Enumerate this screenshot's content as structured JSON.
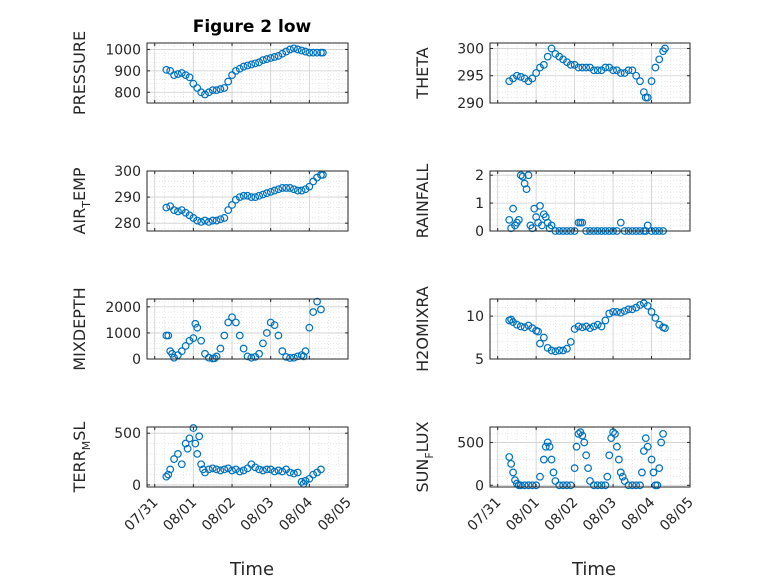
{
  "figure": {
    "title": "Figure 2 low",
    "xlabel": "Time",
    "marker_color": "#0072BD",
    "grid": "on",
    "x_tick_labels": [
      "07/31",
      "08/01",
      "08/02",
      "08/03",
      "08/04",
      "08/05"
    ]
  },
  "chart_data": [
    {
      "type": "scatter",
      "ylabel_main": "PRESSURE",
      "ylabel_sub": "",
      "ylabel_rest": "",
      "ylim": [
        750,
        1030
      ],
      "yticks": [
        800,
        900,
        1000
      ],
      "xlim": [
        -0.2,
        5.0
      ],
      "xticks": [
        0,
        1,
        2,
        3,
        4,
        5
      ],
      "x": [
        0.3,
        0.4,
        0.5,
        0.6,
        0.7,
        0.8,
        0.9,
        1.0,
        1.1,
        1.2,
        1.3,
        1.4,
        1.5,
        1.6,
        1.7,
        1.8,
        1.9,
        2.0,
        2.1,
        2.2,
        2.3,
        2.4,
        2.5,
        2.6,
        2.7,
        2.8,
        2.9,
        3.0,
        3.1,
        3.2,
        3.3,
        3.4,
        3.5,
        3.6,
        3.7,
        3.8,
        3.9,
        4.0,
        4.1,
        4.2,
        4.3,
        4.35
      ],
      "y": [
        905,
        900,
        880,
        885,
        890,
        880,
        870,
        840,
        820,
        800,
        790,
        800,
        810,
        810,
        815,
        820,
        850,
        880,
        900,
        910,
        920,
        925,
        930,
        935,
        940,
        950,
        955,
        960,
        965,
        970,
        980,
        990,
        1000,
        1005,
        1000,
        995,
        990,
        985,
        985,
        985,
        985,
        985
      ]
    },
    {
      "type": "scatter",
      "ylabel_main": "THETA",
      "ylabel_sub": "",
      "ylabel_rest": "",
      "ylim": [
        290,
        301
      ],
      "yticks": [
        290,
        295,
        300
      ],
      "xlim": [
        -0.2,
        5.0
      ],
      "xticks": [
        0,
        1,
        2,
        3,
        4,
        5
      ],
      "x": [
        0.3,
        0.4,
        0.5,
        0.6,
        0.7,
        0.8,
        0.9,
        1.0,
        1.1,
        1.2,
        1.3,
        1.4,
        1.5,
        1.6,
        1.7,
        1.8,
        1.9,
        2.0,
        2.1,
        2.2,
        2.3,
        2.4,
        2.5,
        2.6,
        2.7,
        2.8,
        2.9,
        3.0,
        3.1,
        3.2,
        3.3,
        3.4,
        3.5,
        3.6,
        3.7,
        3.8,
        3.85,
        3.9,
        4.0,
        4.1,
        4.2,
        4.3,
        4.35
      ],
      "y": [
        294,
        294.5,
        295,
        294.8,
        294.5,
        294,
        294.5,
        295.5,
        296.5,
        297,
        298.5,
        300,
        299,
        298.5,
        298,
        297.5,
        297,
        297,
        296.5,
        296.5,
        296.5,
        296.5,
        296,
        296,
        296,
        296.5,
        296.5,
        296,
        296,
        295.5,
        295.5,
        296,
        296,
        295,
        294,
        292,
        291,
        291,
        294,
        296.5,
        298,
        299.5,
        300
      ]
    },
    {
      "type": "scatter",
      "ylabel_main": "AIR",
      "ylabel_sub": "T",
      "ylabel_rest": "EMP",
      "ylim": [
        277,
        300
      ],
      "yticks": [
        280,
        290,
        300
      ],
      "xlim": [
        -0.2,
        5.0
      ],
      "xticks": [
        0,
        1,
        2,
        3,
        4,
        5
      ],
      "x": [
        0.3,
        0.4,
        0.5,
        0.6,
        0.7,
        0.8,
        0.9,
        1.0,
        1.1,
        1.2,
        1.3,
        1.4,
        1.5,
        1.6,
        1.7,
        1.8,
        1.9,
        2.0,
        2.1,
        2.2,
        2.3,
        2.4,
        2.5,
        2.6,
        2.7,
        2.8,
        2.9,
        3.0,
        3.1,
        3.2,
        3.3,
        3.4,
        3.5,
        3.6,
        3.7,
        3.8,
        3.9,
        4.0,
        4.1,
        4.2,
        4.3,
        4.35
      ],
      "y": [
        286,
        286.5,
        285,
        284.5,
        285,
        284,
        283,
        282,
        281,
        280.5,
        281,
        280.5,
        281,
        281,
        281.5,
        282,
        285,
        287,
        289,
        290,
        290.5,
        290.5,
        290,
        290,
        290.5,
        291,
        291.5,
        292,
        292.5,
        293,
        293.5,
        293.5,
        293.5,
        293,
        292.5,
        292.5,
        293,
        294,
        296,
        297.5,
        298.5,
        298.5
      ]
    },
    {
      "type": "scatter",
      "ylabel_main": "RAINFALL",
      "ylabel_sub": "",
      "ylabel_rest": "",
      "ylim": [
        0,
        2.15
      ],
      "yticks": [
        0,
        1,
        2
      ],
      "xlim": [
        -0.2,
        5.0
      ],
      "xticks": [
        0,
        1,
        2,
        3,
        4,
        5
      ],
      "x": [
        0.3,
        0.35,
        0.4,
        0.45,
        0.5,
        0.55,
        0.6,
        0.65,
        0.7,
        0.75,
        0.8,
        0.85,
        0.9,
        0.95,
        1.0,
        1.05,
        1.1,
        1.15,
        1.2,
        1.25,
        1.3,
        1.35,
        1.4,
        1.5,
        1.6,
        1.7,
        1.8,
        1.9,
        2.0,
        2.1,
        2.15,
        2.2,
        2.3,
        2.4,
        2.5,
        2.6,
        2.7,
        2.8,
        2.9,
        3.0,
        3.1,
        3.2,
        3.3,
        3.4,
        3.5,
        3.6,
        3.7,
        3.8,
        3.85,
        3.9,
        4.0,
        4.1,
        4.2,
        4.3
      ],
      "y": [
        0.4,
        0.1,
        0.8,
        0.2,
        0.3,
        0.4,
        2.0,
        1.95,
        1.7,
        1.5,
        2.0,
        0.2,
        0.1,
        0.8,
        0.5,
        0.3,
        0.9,
        0.2,
        0.6,
        0.5,
        0.3,
        0.1,
        0.2,
        0,
        0,
        0,
        0,
        0,
        0,
        0.3,
        0.3,
        0.3,
        0,
        0,
        0,
        0,
        0,
        0,
        0,
        0,
        0,
        0.3,
        0,
        0,
        0,
        0,
        0,
        0,
        0,
        0.2,
        0,
        0,
        0,
        0
      ]
    },
    {
      "type": "scatter",
      "ylabel_main": "MIXDEPTH",
      "ylabel_sub": "",
      "ylabel_rest": "",
      "ylim": [
        0,
        2300
      ],
      "yticks": [
        0,
        1000,
        2000
      ],
      "xlim": [
        -0.2,
        5.0
      ],
      "xticks": [
        0,
        1,
        2,
        3,
        4,
        5
      ],
      "x": [
        0.3,
        0.35,
        0.4,
        0.45,
        0.5,
        0.6,
        0.7,
        0.8,
        0.9,
        1.0,
        1.05,
        1.1,
        1.2,
        1.3,
        1.4,
        1.5,
        1.55,
        1.6,
        1.7,
        1.8,
        1.9,
        2.0,
        2.1,
        2.2,
        2.3,
        2.4,
        2.5,
        2.6,
        2.7,
        2.8,
        2.9,
        3.0,
        3.1,
        3.2,
        3.3,
        3.4,
        3.5,
        3.6,
        3.7,
        3.8,
        3.85,
        3.9,
        4.0,
        4.1,
        4.2,
        4.3
      ],
      "y": [
        900,
        900,
        300,
        200,
        50,
        150,
        300,
        500,
        700,
        800,
        1350,
        1200,
        700,
        200,
        50,
        20,
        30,
        100,
        400,
        900,
        1400,
        1600,
        1400,
        900,
        400,
        100,
        50,
        80,
        200,
        600,
        1000,
        1400,
        1300,
        900,
        300,
        80,
        40,
        50,
        100,
        150,
        100,
        300,
        1200,
        1800,
        2200,
        1900
      ]
    },
    {
      "type": "scatter",
      "ylabel_main": "H2OMIXRA",
      "ylabel_sub": "",
      "ylabel_rest": "",
      "ylim": [
        5,
        12
      ],
      "yticks": [
        5,
        10
      ],
      "xlim": [
        -0.2,
        5.0
      ],
      "xticks": [
        0,
        1,
        2,
        3,
        4,
        5
      ],
      "x": [
        0.3,
        0.35,
        0.4,
        0.5,
        0.6,
        0.7,
        0.8,
        0.9,
        1.0,
        1.05,
        1.1,
        1.2,
        1.3,
        1.4,
        1.5,
        1.6,
        1.7,
        1.8,
        1.9,
        2.0,
        2.1,
        2.2,
        2.3,
        2.4,
        2.5,
        2.6,
        2.7,
        2.8,
        2.9,
        3.0,
        3.1,
        3.2,
        3.3,
        3.4,
        3.5,
        3.6,
        3.7,
        3.8,
        3.9,
        4.0,
        4.1,
        4.2,
        4.3,
        4.35
      ],
      "y": [
        9.5,
        9.6,
        9.3,
        9.0,
        8.8,
        8.7,
        8.9,
        8.6,
        8.3,
        8.2,
        6.8,
        7.5,
        6.3,
        6.0,
        5.9,
        6.0,
        6.0,
        6.2,
        7.0,
        8.5,
        8.8,
        8.7,
        8.8,
        8.6,
        8.8,
        9.0,
        8.8,
        9.5,
        10.3,
        10.5,
        10.5,
        10.4,
        10.6,
        10.8,
        10.8,
        11.0,
        11.3,
        11.5,
        11.2,
        10.5,
        9.8,
        9.0,
        8.7,
        8.6
      ]
    },
    {
      "type": "scatter",
      "ylabel_main": "TERR",
      "ylabel_sub": "M",
      "ylabel_rest": "SL",
      "ylim": [
        -20,
        560
      ],
      "yticks": [
        0,
        500
      ],
      "xlim": [
        -0.2,
        5.0
      ],
      "xticks": [
        0,
        1,
        2,
        3,
        4,
        5
      ],
      "x": [
        0.3,
        0.35,
        0.4,
        0.5,
        0.6,
        0.7,
        0.8,
        0.85,
        0.9,
        1.0,
        1.05,
        1.1,
        1.15,
        1.2,
        1.25,
        1.3,
        1.4,
        1.5,
        1.6,
        1.7,
        1.8,
        1.9,
        2.0,
        2.1,
        2.2,
        2.3,
        2.4,
        2.5,
        2.6,
        2.7,
        2.8,
        2.9,
        3.0,
        3.1,
        3.2,
        3.3,
        3.4,
        3.5,
        3.6,
        3.7,
        3.8,
        3.85,
        3.9,
        4.0,
        4.1,
        4.2,
        4.3
      ],
      "y": [
        80,
        100,
        150,
        250,
        300,
        200,
        400,
        350,
        450,
        550,
        400,
        300,
        470,
        200,
        150,
        120,
        150,
        160,
        150,
        140,
        150,
        160,
        140,
        150,
        130,
        140,
        160,
        200,
        170,
        150,
        140,
        150,
        150,
        130,
        140,
        130,
        150,
        120,
        110,
        120,
        30,
        10,
        40,
        60,
        100,
        120,
        150
      ]
    },
    {
      "type": "scatter",
      "ylabel_main": "SUN",
      "ylabel_sub": "F",
      "ylabel_rest": "LUX",
      "ylim": [
        -20,
        680
      ],
      "yticks": [
        0,
        500
      ],
      "xlim": [
        -0.2,
        5.0
      ],
      "xticks": [
        0,
        1,
        2,
        3,
        4,
        5
      ],
      "x": [
        0.3,
        0.35,
        0.4,
        0.45,
        0.5,
        0.55,
        0.6,
        0.7,
        0.8,
        0.9,
        1.0,
        1.1,
        1.2,
        1.25,
        1.3,
        1.35,
        1.4,
        1.45,
        1.5,
        1.6,
        1.7,
        1.8,
        1.9,
        2.0,
        2.05,
        2.1,
        2.15,
        2.2,
        2.25,
        2.3,
        2.35,
        2.4,
        2.5,
        2.6,
        2.7,
        2.8,
        2.85,
        2.9,
        2.95,
        3.0,
        3.05,
        3.1,
        3.15,
        3.2,
        3.25,
        3.3,
        3.4,
        3.5,
        3.6,
        3.7,
        3.75,
        3.8,
        3.85,
        3.9,
        4.0,
        4.05,
        4.1,
        4.15,
        4.2,
        4.25,
        4.3
      ],
      "y": [
        330,
        250,
        150,
        60,
        20,
        0,
        0,
        0,
        0,
        0,
        0,
        100,
        300,
        450,
        500,
        450,
        300,
        150,
        50,
        0,
        0,
        0,
        0,
        200,
        450,
        600,
        620,
        580,
        500,
        350,
        200,
        50,
        0,
        0,
        0,
        0,
        100,
        350,
        550,
        620,
        600,
        450,
        300,
        150,
        100,
        50,
        0,
        0,
        0,
        0,
        150,
        400,
        550,
        450,
        300,
        150,
        0,
        0,
        200,
        500,
        600
      ]
    }
  ]
}
